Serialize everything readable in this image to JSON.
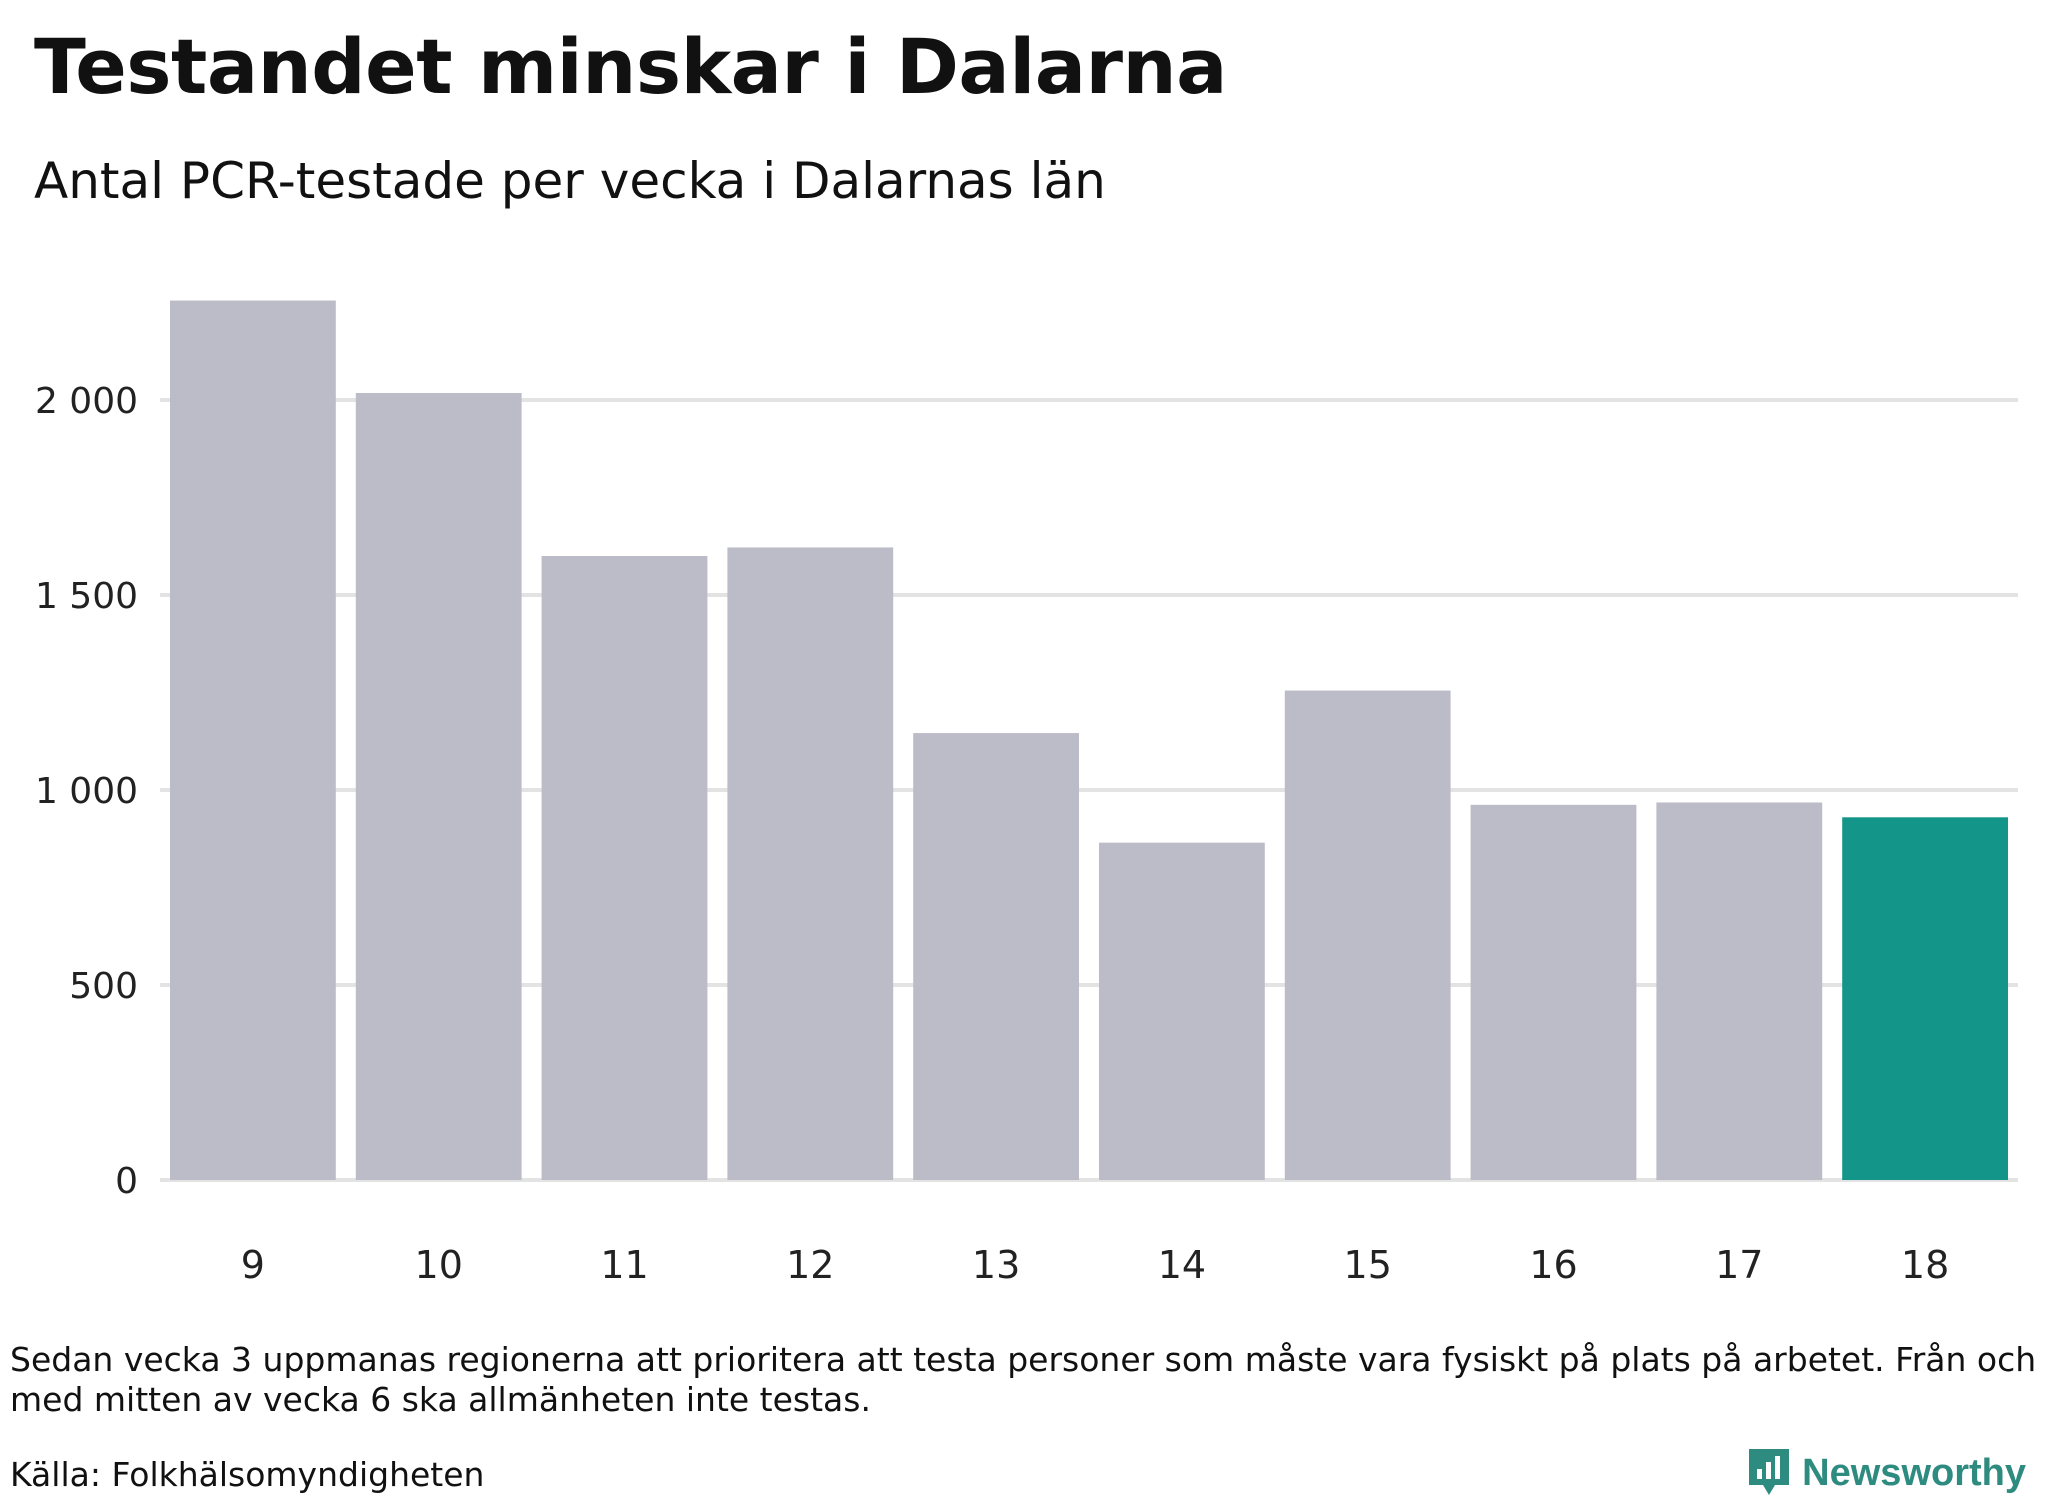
{
  "title": "Testandet minskar i Dalarna",
  "subtitle": "Antal PCR-testade per vecka i Dalarnas län",
  "note": "Sedan vecka 3 uppmanas regionerna att prioritera att testa personer som måste vara fysiskt på plats på arbetet. Från och med mitten av vecka 6 ska allmänheten inte testas.",
  "source": "Källa: Folkhälsomyndigheten",
  "logo": {
    "name": "Newsworthy",
    "icon": "bar-chart-speech-bubble-icon"
  },
  "colors": {
    "bar": "#bcbbc8",
    "highlight": "#149589",
    "grid": "#e3e3e3",
    "logo": "#2e8b80"
  },
  "chart_data": {
    "type": "bar",
    "categories": [
      "9",
      "10",
      "11",
      "12",
      "13",
      "14",
      "15",
      "16",
      "17",
      "18"
    ],
    "values": [
      2255,
      2018,
      1600,
      1622,
      1146,
      865,
      1255,
      962,
      968,
      930
    ],
    "highlight_index": 9,
    "xlabel": "",
    "ylabel": "",
    "ylim": [
      0,
      2300
    ],
    "yticks": [
      0,
      500,
      1000,
      1500,
      2000
    ],
    "ytick_labels": [
      "0",
      "500",
      "1 000",
      "1 500",
      "2 000"
    ],
    "grid": true,
    "legend": "none"
  }
}
